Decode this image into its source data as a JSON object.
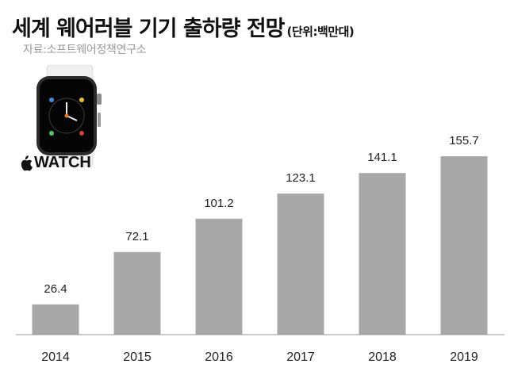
{
  "title": "세계 웨어러블 기기 출하량 전망",
  "unit": "(단위:백만대)",
  "source": "자료:소프트웨어정책연구소",
  "brand": {
    "text": "WATCH",
    "logo_icon": "apple-logo-icon"
  },
  "colors": {
    "bar": "#a8a8a8",
    "axis": "#999999",
    "text": "#222222"
  },
  "chart_data": {
    "type": "bar",
    "categories": [
      "2014",
      "2015",
      "2016",
      "2017",
      "2018",
      "2019"
    ],
    "values": [
      26.4,
      72.1,
      101.2,
      123.1,
      141.1,
      155.7
    ],
    "value_labels": [
      "26.4",
      "72.1",
      "101.2",
      "123.1",
      "141.1",
      "155.7"
    ],
    "title": "세계 웨어러블 기기 출하량 전망",
    "xlabel": "",
    "ylabel": "",
    "ylim": [
      0,
      180
    ],
    "grid": false,
    "legend": "none"
  }
}
